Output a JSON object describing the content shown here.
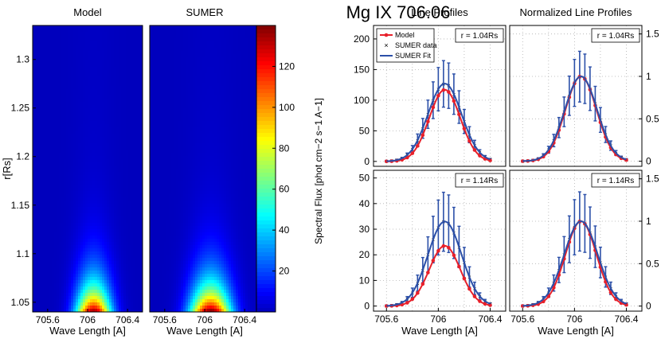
{
  "figure": {
    "title": "Mg IX 706.06",
    "ylabel_center": "Spectral Flux [phot cm−2 s−1 A−1]"
  },
  "colors": {
    "model": "#e8202a",
    "sumer": "#2b4fa8",
    "grid": "#b0b0b0"
  },
  "chart_data": [
    {
      "type": "heatmap",
      "id": "model-map",
      "title": "Model",
      "xlabel": "Wave Length [A]",
      "ylabel": "r[Rs]",
      "xlim": [
        705.45,
        706.55
      ],
      "ylim": [
        1.04,
        1.335
      ],
      "xticks": [
        "705.6",
        "706",
        "706.4"
      ],
      "yticks": [
        "1.05",
        "1.1",
        "1.15",
        "1.2",
        "1.25",
        "1.3"
      ],
      "ytick_values": [
        1.05,
        1.1,
        1.15,
        1.2,
        1.25,
        1.3
      ],
      "peak_wavelength": 706.06,
      "peak_flux": 135,
      "core_width": 0.12
    },
    {
      "type": "heatmap",
      "id": "sumer-map",
      "title": "SUMER",
      "xlabel": "Wave Length [A]",
      "xlim": [
        705.45,
        706.55
      ],
      "ylim": [
        1.04,
        1.335
      ],
      "xticks": [
        "705.6",
        "706",
        "706.4"
      ],
      "peak_wavelength": 706.06,
      "peak_flux": 140,
      "core_width": 0.14
    },
    {
      "type": "colorbar",
      "id": "colorbar",
      "range": [
        0,
        140
      ],
      "ticks": [
        "20",
        "40",
        "60",
        "80",
        "100",
        "120"
      ],
      "tick_values": [
        20,
        40,
        60,
        80,
        100,
        120
      ]
    },
    {
      "type": "line",
      "id": "lp-top",
      "title": "Line Profiles",
      "annotation": "r = 1.04Rs",
      "xlim": [
        705.5,
        706.52
      ],
      "ylim": [
        -8,
        222
      ],
      "yticks": [
        "0",
        "50",
        "100",
        "150",
        "200"
      ],
      "ytick_values": [
        0,
        50,
        100,
        150,
        200
      ],
      "legend": [
        "Model",
        "SUMER data",
        "SUMER Fit"
      ],
      "series": [
        {
          "name": "Model",
          "center": 706.05,
          "amplitude": 117,
          "sigma": 0.12
        },
        {
          "name": "SUMER Fit",
          "center": 706.05,
          "amplitude": 127,
          "sigma": 0.13
        },
        {
          "name": "SUMER data",
          "center": 706.05,
          "amplitude": 127,
          "sigma": 0.13,
          "error_frac": 0.3
        }
      ]
    },
    {
      "type": "line",
      "id": "nlp-top",
      "title": "Normalized Line Profiles",
      "annotation": "r = 1.04Rs",
      "xlim": [
        705.5,
        706.52
      ],
      "ylim": [
        -0.06,
        1.6
      ],
      "yticks": [
        "0",
        "0.5",
        "1",
        "1.5"
      ],
      "ytick_values": [
        0,
        0.5,
        1,
        1.5
      ],
      "series": [
        {
          "name": "Model",
          "center": 706.05,
          "amplitude": 1.0,
          "sigma": 0.12
        },
        {
          "name": "SUMER Fit",
          "center": 706.05,
          "amplitude": 1.0,
          "sigma": 0.125
        },
        {
          "name": "SUMER data",
          "center": 706.05,
          "amplitude": 1.0,
          "sigma": 0.125,
          "error_frac": 0.3
        }
      ]
    },
    {
      "type": "line",
      "id": "lp-bot",
      "annotation": "r = 1.14Rs",
      "xlabel": "Wave Length [A]",
      "xticks": [
        "705.6",
        "706",
        "706.4"
      ],
      "xtick_values": [
        705.6,
        706.0,
        706.4
      ],
      "xlim": [
        705.5,
        706.52
      ],
      "ylim": [
        -2,
        53
      ],
      "yticks": [
        "0",
        "10",
        "20",
        "30",
        "40",
        "50"
      ],
      "ytick_values": [
        0,
        10,
        20,
        30,
        40,
        50
      ],
      "series": [
        {
          "name": "Model",
          "center": 706.05,
          "amplitude": 23.5,
          "sigma": 0.12
        },
        {
          "name": "SUMER Fit",
          "center": 706.05,
          "amplitude": 33,
          "sigma": 0.13
        },
        {
          "name": "SUMER data",
          "center": 706.05,
          "amplitude": 33,
          "sigma": 0.13,
          "error_frac": 0.35
        }
      ]
    },
    {
      "type": "line",
      "id": "nlp-bot",
      "annotation": "r = 1.14Rs",
      "xlabel": "Wave Length [A]",
      "xticks": [
        "705.6",
        "706",
        "706.4"
      ],
      "xtick_values": [
        705.6,
        706.0,
        706.4
      ],
      "xlim": [
        705.5,
        706.52
      ],
      "ylim": [
        -0.06,
        1.6
      ],
      "yticks": [
        "0",
        "0.5",
        "1",
        "1.5"
      ],
      "ytick_values": [
        0,
        0.5,
        1,
        1.5
      ],
      "series": [
        {
          "name": "Model",
          "center": 706.05,
          "amplitude": 1.0,
          "sigma": 0.12
        },
        {
          "name": "SUMER Fit",
          "center": 706.05,
          "amplitude": 1.0,
          "sigma": 0.13
        },
        {
          "name": "SUMER data",
          "center": 706.05,
          "amplitude": 1.0,
          "sigma": 0.13,
          "error_frac": 0.35
        }
      ]
    }
  ]
}
